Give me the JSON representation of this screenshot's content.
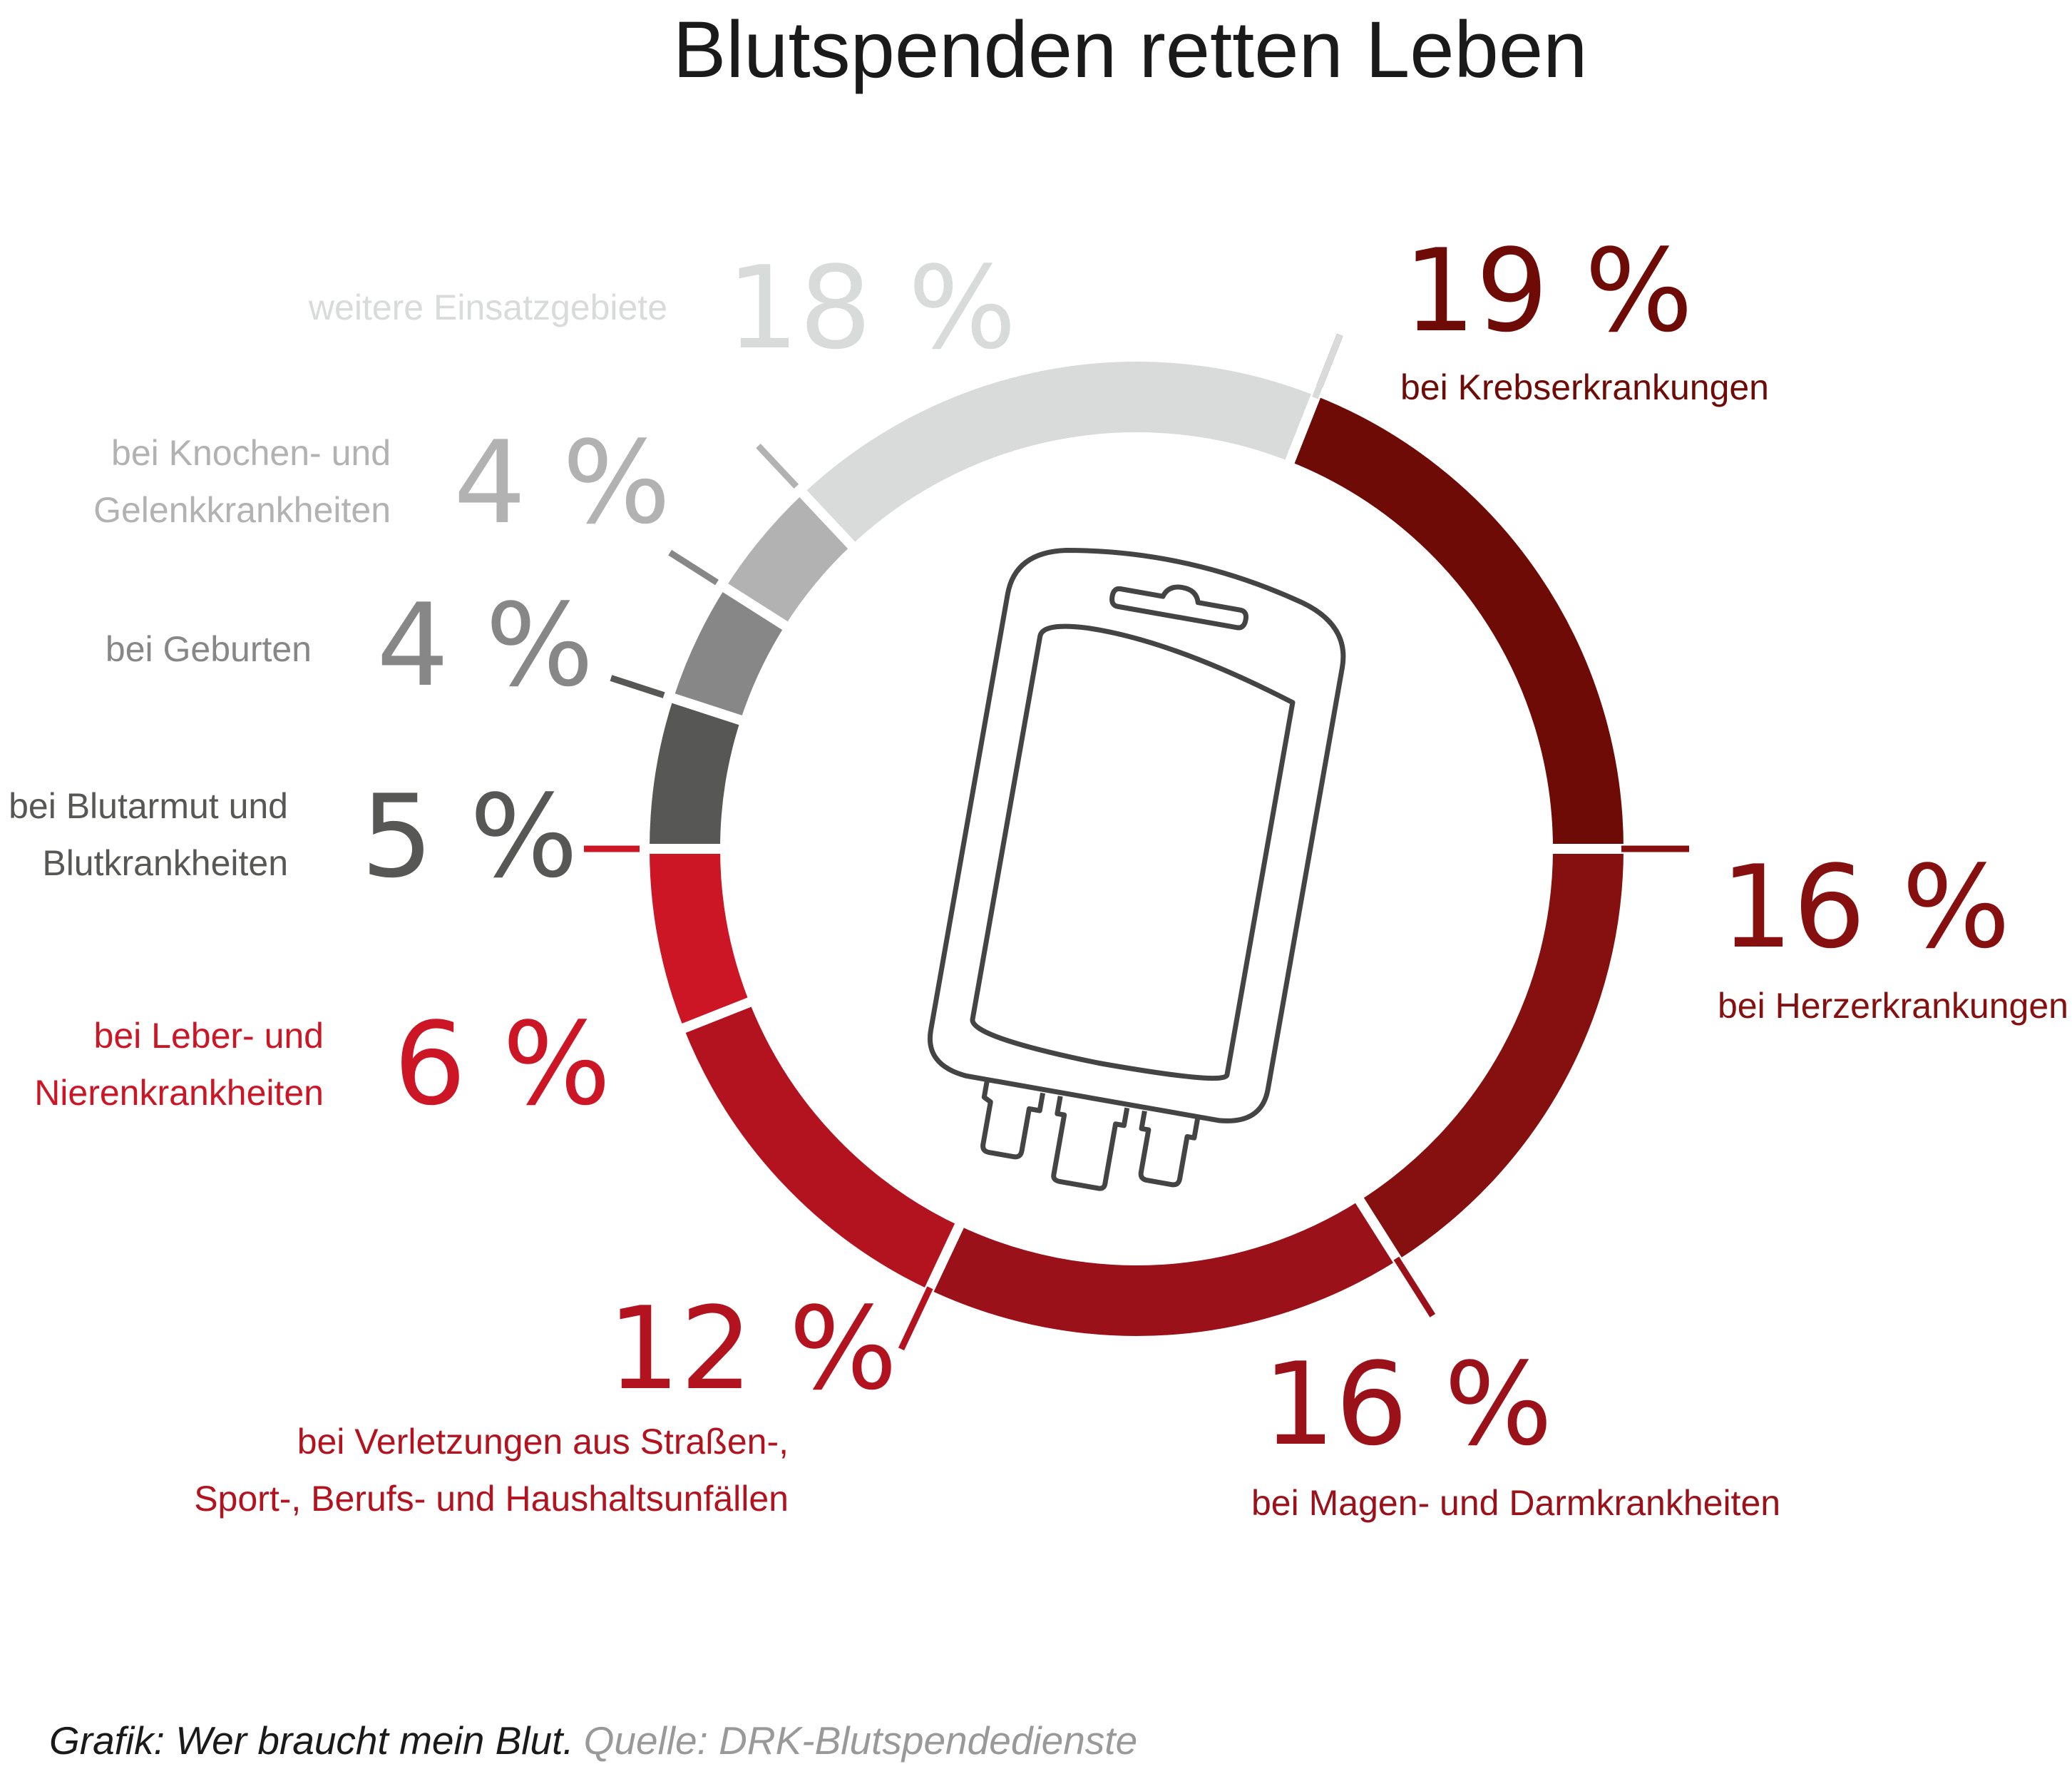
{
  "chart_data": {
    "type": "pie",
    "variant": "donut",
    "title": "Blutspenden retten Leben",
    "unit": "%",
    "slices": [
      {
        "value": 19,
        "label_value": "19 %",
        "label": [
          "bei Krebserkrankungen"
        ],
        "color": "#6e0b06"
      },
      {
        "value": 16,
        "label_value": "16 %",
        "label": [
          "bei Herzerkrankungen"
        ],
        "color": "#85100f"
      },
      {
        "value": 16,
        "label_value": "16 %",
        "label": [
          "bei Magen- und Darmkrankheiten"
        ],
        "color": "#9a111a"
      },
      {
        "value": 12,
        "label_value": "12 %",
        "label": [
          "bei Verletzungen aus Straßen-,",
          "Sport-, Berufs- und Haushaltsunfällen"
        ],
        "color": "#b3131f"
      },
      {
        "value": 6,
        "label_value": "6 %",
        "label": [
          "bei Leber- und",
          "Nierenkrankheiten"
        ],
        "color": "#cc1626"
      },
      {
        "value": 5,
        "label_value": "5 %",
        "label": [
          "bei Blutarmut und",
          "Blutkrankheiten"
        ],
        "color": "#575755"
      },
      {
        "value": 4,
        "label_value": "4 %",
        "label": [
          "bei Geburten"
        ],
        "color": "#878787"
      },
      {
        "value": 4,
        "label_value": "4 %",
        "label": [
          "bei Knochen- und",
          "Gelenkkrankheiten"
        ],
        "color": "#b1b2b1"
      },
      {
        "value": 18,
        "label_value": "18 %",
        "label": [
          "weitere Einsatzgebiete"
        ],
        "color": "#d9dbda"
      }
    ],
    "center_icon": "blood-bag-icon"
  },
  "footer": {
    "credit": "Grafik: Wer braucht mein Blut.",
    "source": "Quelle: DRK-Blutspendedienste"
  }
}
